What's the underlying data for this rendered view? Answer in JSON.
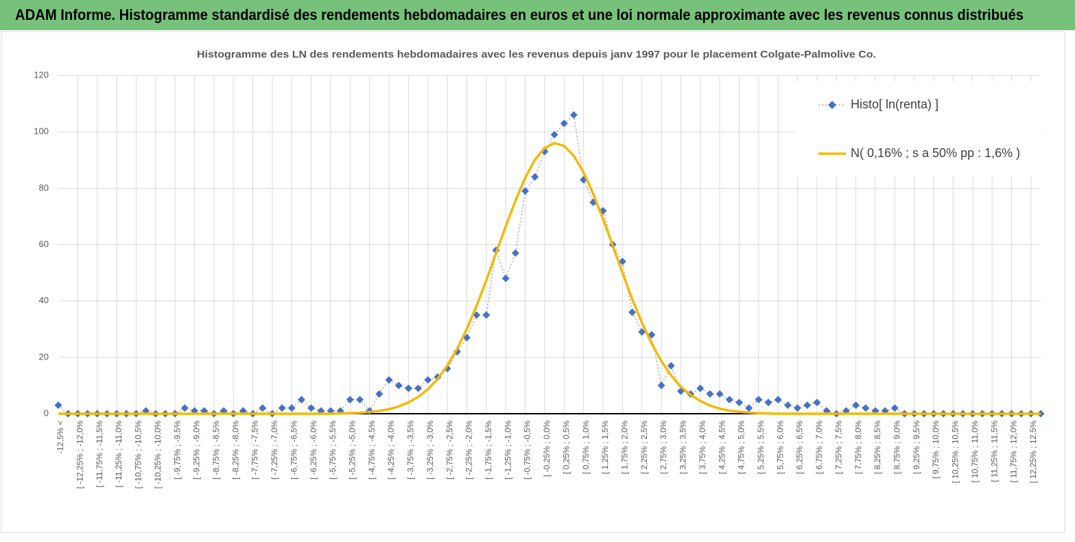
{
  "header": {
    "title": "ADAM Informe. Histogramme standardisé des rendements hebdomadaires en euros et une loi normale approximante avec les revenus connus distribués"
  },
  "chart_data": {
    "type": "line",
    "title": "Histogramme des LN des rendements hebdomadaires avec les revenus depuis janv 1997 pour le placement Colgate-Palmolive Co.",
    "categories": [
      "-12,5% <",
      null,
      "[ -12,25% ; -12,0%",
      null,
      "[ -11,75% ; -11,5%",
      null,
      "[ -11,25% ; -11,0%",
      null,
      "[ -10,75% ; -10,5%",
      null,
      "[ -10,25% ; -10,0%",
      null,
      "[ -9,75% ; -9,5%",
      null,
      "[ -9,25% ; -9,0%",
      null,
      "[ -8,75% ; -8,5%",
      null,
      "[ -8,25% ; -8,0%",
      null,
      "[ -7,75% ; -7,5%",
      null,
      "[ -7,25% ; -7,0%",
      null,
      "[ -6,75% ; -6,5%",
      null,
      "[ -6,25% ; -6,0%",
      null,
      "[ -5,75% ; -5,5%",
      null,
      "[ -5,25% ; -5,0%",
      null,
      "[ -4,75% ; -4,5%",
      null,
      "[ -4,25% ; -4,0%",
      null,
      "[ -3,75% ; -3,5%",
      null,
      "[ -3,25% ; -3,0%",
      null,
      "[ -2,75% ; -2,5%",
      null,
      "[ -2,25% ; -2,0%",
      null,
      "[ -1,75% ; -1,5%",
      null,
      "[ -1,25% ; -1,0%",
      null,
      "[ -0,75% ; -0,5%",
      null,
      "[ -0,25% ; 0,0%",
      null,
      "[ 0,25% ; 0,5%",
      null,
      "[ 0,75% ; 1,0%",
      null,
      "[ 1,25% ; 1,5%",
      null,
      "[ 1,75% ; 2,0%",
      null,
      "[ 2,25% ; 2,5%",
      null,
      "[ 2,75% ; 3,0%",
      null,
      "[ 3,25% ; 3,5%",
      null,
      "[ 3,75% ; 4,0%",
      null,
      "[ 4,25% ; 4,5%",
      null,
      "[ 4,75% ; 5,0%",
      null,
      "[ 5,25% ; 5,5%",
      null,
      "[ 5,75% ; 6,0%",
      null,
      "[ 6,25% ; 6,5%",
      null,
      "[ 6,75% ; 7,0%",
      null,
      "[ 7,25% ; 7,5%",
      null,
      "[ 7,75% ; 8,0%",
      null,
      "[ 8,25% ; 8,5%",
      null,
      "[ 8,75% ; 9,0%",
      null,
      "[ 9,25% ; 9,5%",
      null,
      "[ 9,75% ; 10,0%",
      null,
      "[ 10,25% ; 10,5%",
      null,
      "[ 10,75% ; 11,0%",
      null,
      "[ 11,25% ; 11,5%",
      null,
      "[ 11,75% ; 12,0%",
      null,
      "[ 12,25% ; 12,5%",
      null
    ],
    "series": [
      {
        "name": "Histo[ ln(renta) ]",
        "color": "#4472c4",
        "marker": "diamond",
        "line_style": "dotted",
        "values": [
          3,
          0,
          0,
          0,
          0,
          0,
          0,
          0,
          0,
          1,
          0,
          0,
          0,
          2,
          1,
          1,
          0,
          1,
          0,
          1,
          0,
          2,
          0,
          2,
          2,
          5,
          2,
          1,
          1,
          1,
          5,
          5,
          1,
          7,
          12,
          10,
          9,
          9,
          12,
          13,
          16,
          22,
          27,
          35,
          35,
          58,
          48,
          57,
          79,
          84,
          93,
          99,
          103,
          106,
          83,
          75,
          72,
          60,
          54,
          36,
          29,
          28,
          10,
          17,
          8,
          7,
          9,
          7,
          7,
          5,
          4,
          2,
          5,
          4,
          5,
          3,
          2,
          3,
          4,
          1,
          0,
          1,
          3,
          2,
          1,
          1,
          2,
          0,
          0,
          0,
          0,
          0,
          0,
          0,
          0,
          0,
          0,
          0,
          0,
          0,
          0,
          0
        ]
      },
      {
        "name": "N( 0,16% ; s a 50% pp : 1,6% )",
        "color": "#f5b800",
        "line_style": "solid",
        "values": [
          0,
          0,
          0,
          0,
          0,
          0,
          0,
          0,
          0,
          0,
          0,
          0,
          0,
          0,
          0,
          0,
          0,
          0,
          0,
          0,
          0,
          0,
          0,
          0,
          0,
          0,
          0,
          0,
          0,
          0.1,
          0.2,
          0.3,
          0.6,
          1.0,
          1.6,
          2.6,
          4.0,
          6.0,
          8.7,
          12.4,
          17.1,
          23.0,
          30.1,
          38.3,
          47.3,
          56.9,
          66.5,
          75.6,
          83.7,
          90.1,
          94.3,
          96.0,
          95.0,
          91.5,
          85.7,
          78.0,
          69.1,
          59.6,
          50.0,
          40.7,
          32.3,
          24.9,
          18.7,
          13.6,
          9.6,
          6.7,
          4.5,
          2.9,
          1.8,
          1.1,
          0.7,
          0.4,
          0.2,
          0.1,
          0,
          0,
          0,
          0,
          0,
          0,
          0,
          0,
          0,
          0,
          0,
          0,
          0,
          0,
          0,
          0,
          0,
          0,
          0,
          0,
          0,
          0,
          0,
          0,
          0,
          0,
          0,
          0
        ]
      }
    ],
    "ylim": [
      0,
      120
    ],
    "yticks": [
      0,
      20,
      40,
      60,
      80,
      100,
      120
    ],
    "grid": true,
    "legend": "top-right"
  }
}
